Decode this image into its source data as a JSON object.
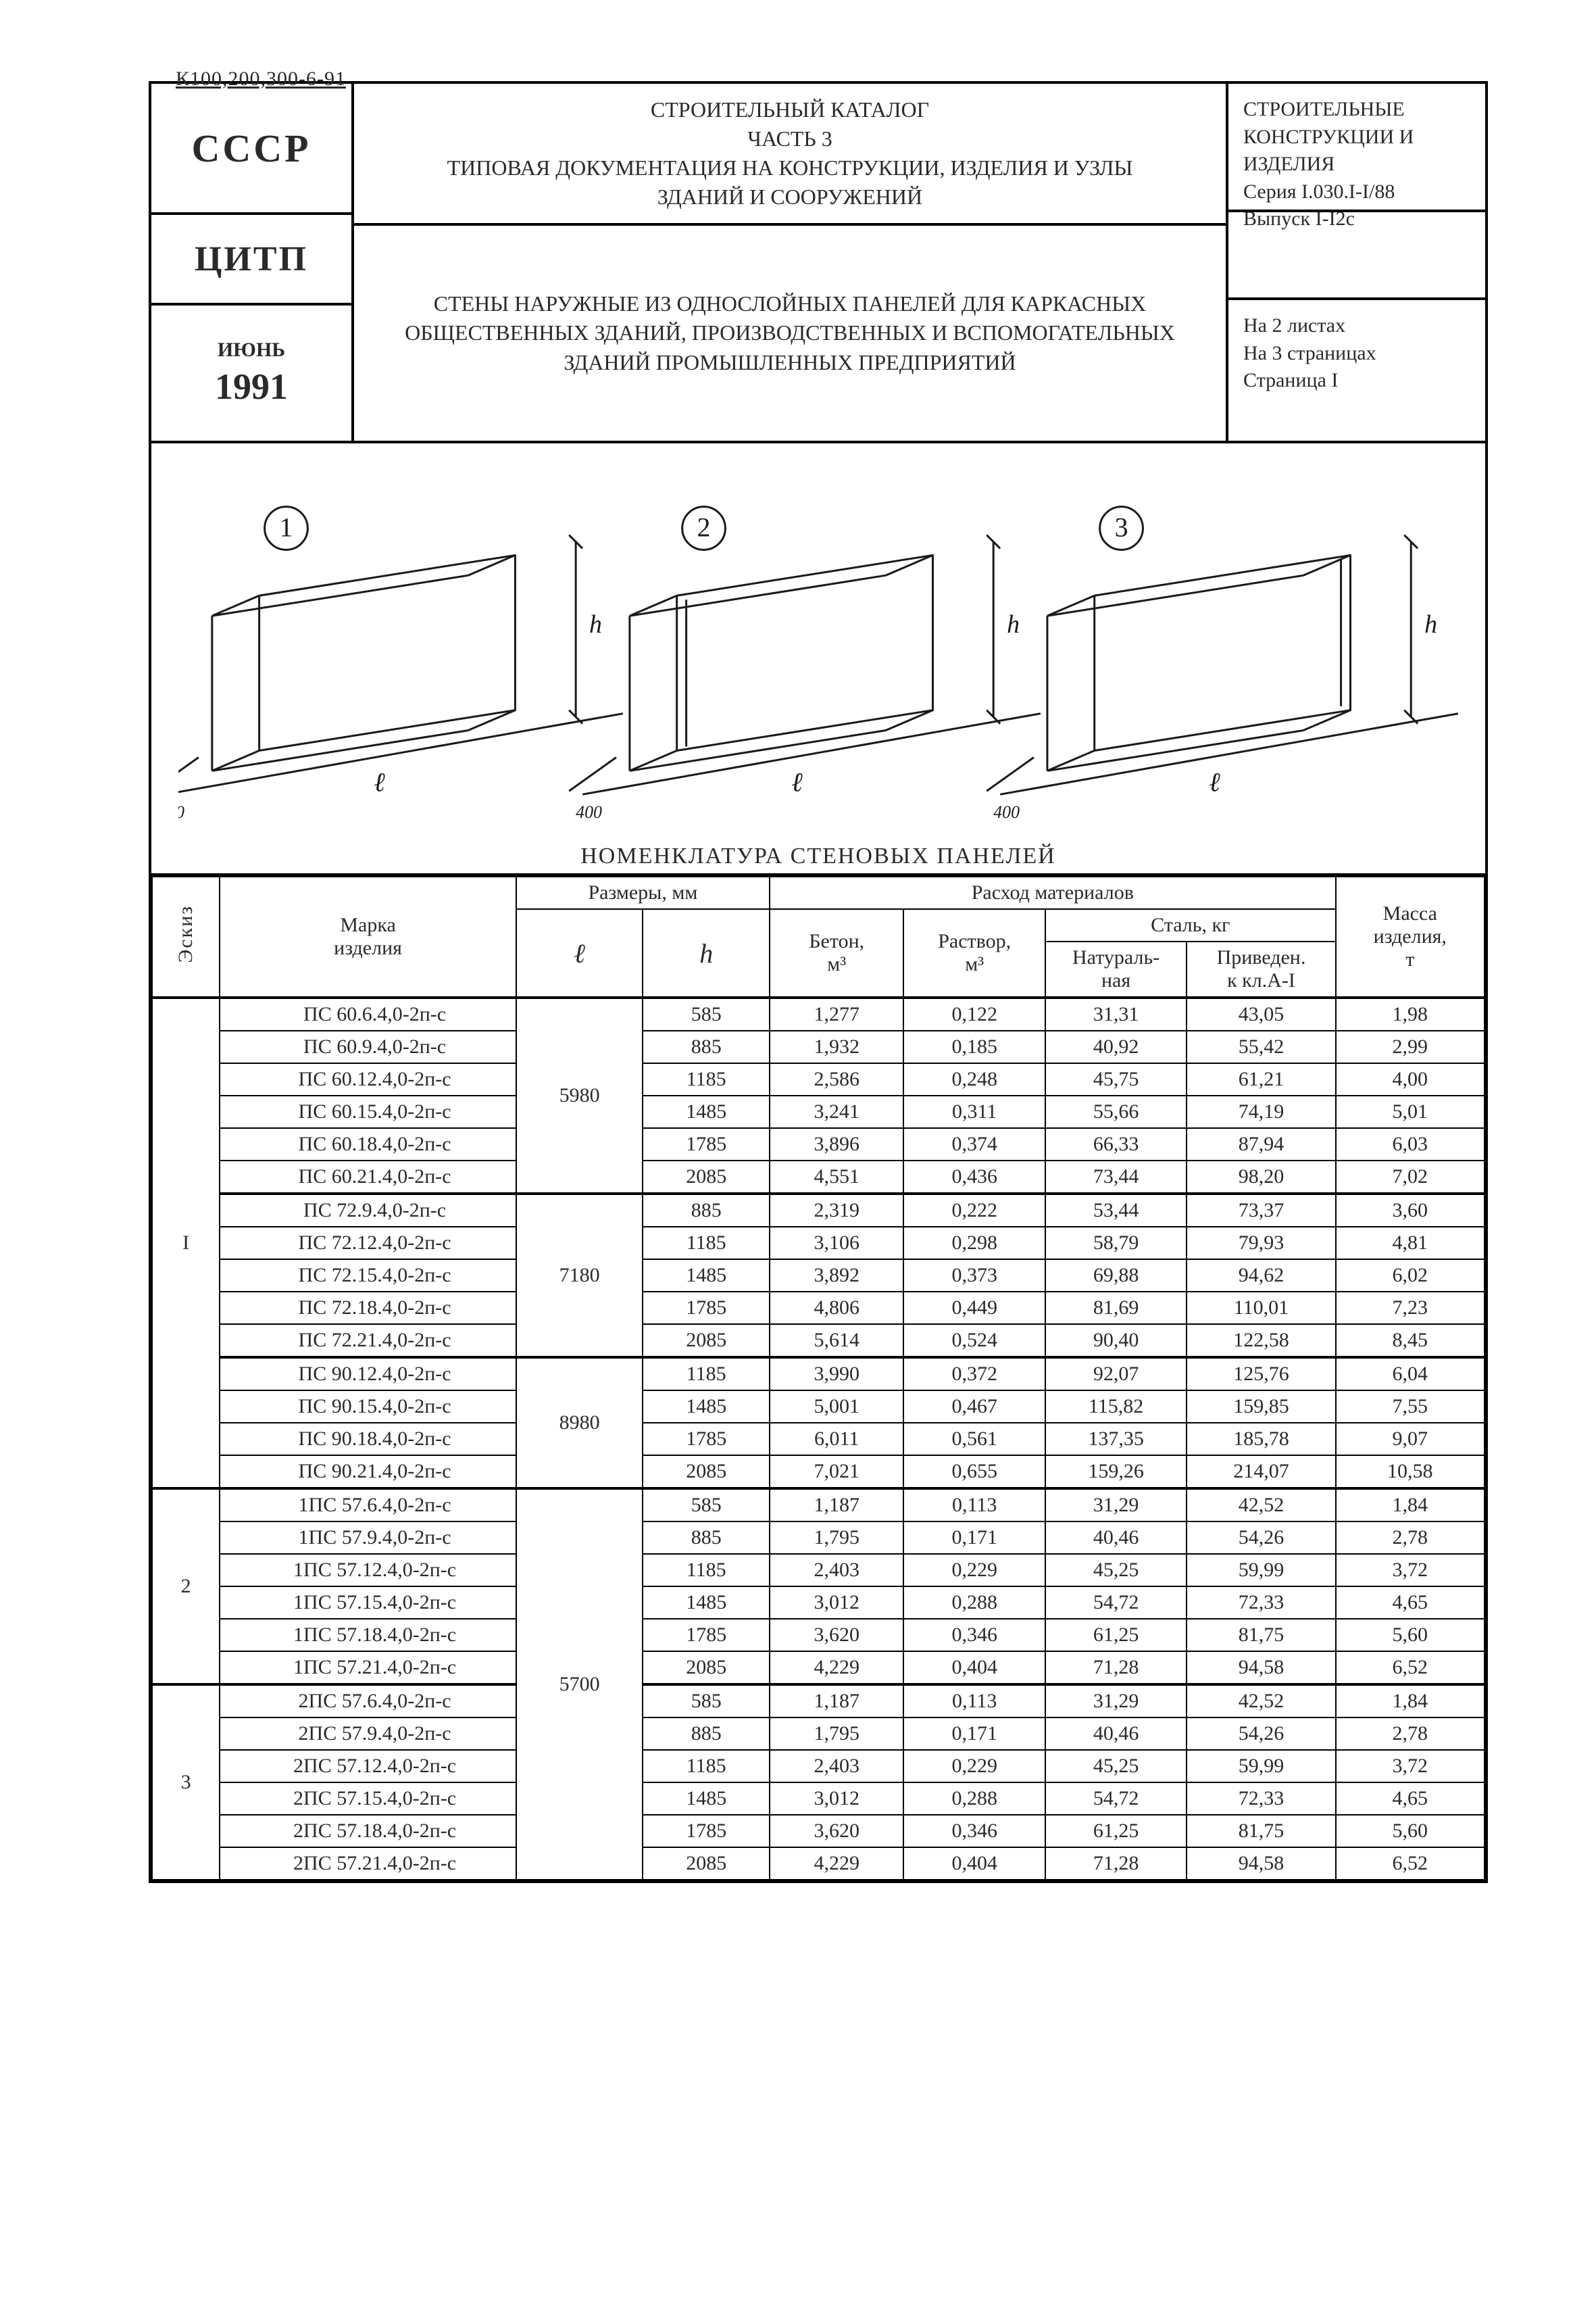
{
  "doc_code": "К100,200,300-6-91",
  "header": {
    "left": {
      "country": "СССР",
      "org": "ЦИТП",
      "month": "ИЮНЬ",
      "year": "1991"
    },
    "mid_top": "СТРОИТЕЛЬНЫЙ КАТАЛОГ\nЧАСТЬ 3\nТИПОВАЯ ДОКУМЕНТАЦИЯ НА КОНСТРУКЦИИ, ИЗДЕЛИЯ И УЗЛЫ\nЗДАНИЙ И СООРУЖЕНИЙ",
    "mid_bot": "СТЕНЫ НАРУЖНЫЕ ИЗ ОДНОСЛОЙНЫХ ПАНЕЛЕЙ ДЛЯ КАРКАСНЫХ\nОБЩЕСТВЕННЫХ ЗДАНИЙ, ПРОИЗВОДСТВЕННЫХ И ВСПОМОГАТЕЛЬНЫХ\nЗДАНИЙ ПРОМЫШЛЕННЫХ ПРЕДПРИЯТИЙ",
    "right_top": "СТРОИТЕЛЬНЫЕ\nКОНСТРУКЦИИ И\nИЗДЕЛИЯ\nСерия I.030.I-I/88\nВыпуск I-I2с",
    "right_bot": "На 2 листах\nНа 3 страницах\nСтраница I"
  },
  "diagram": {
    "caption": "НОМЕНКЛАТУРА СТЕНОВЫХ ПАНЕЛЕЙ",
    "labels": [
      "1",
      "2",
      "3"
    ],
    "dim_h": "h",
    "dim_l": "ℓ",
    "dim_w": "400",
    "stroke": "#1a1a1a",
    "stroke_w": 3
  },
  "columns": {
    "eskiz": "Эскиз",
    "marka": "Марка\nизделия",
    "razmery": "Размеры, мм",
    "l": "ℓ",
    "h": "h",
    "rashod": "Расход материалов",
    "beton": "Бетон,\nм³",
    "rastvor": "Раствор,\nм³",
    "stal": "Сталь, кг",
    "nat": "Натураль-\nная",
    "priv": "Приведен.\nк кл.А-I",
    "massa": "Масса\nизделия,\nт"
  },
  "groups": [
    {
      "eskiz": "I",
      "blocks": [
        {
          "l": "5980",
          "rows": [
            [
              "ПС 60.6.4,0-2п-с",
              "585",
              "1,277",
              "0,122",
              "31,31",
              "43,05",
              "1,98"
            ],
            [
              "ПС 60.9.4,0-2п-с",
              "885",
              "1,932",
              "0,185",
              "40,92",
              "55,42",
              "2,99"
            ],
            [
              "ПС 60.12.4,0-2п-с",
              "1185",
              "2,586",
              "0,248",
              "45,75",
              "61,21",
              "4,00"
            ],
            [
              "ПС 60.15.4,0-2п-с",
              "1485",
              "3,241",
              "0,311",
              "55,66",
              "74,19",
              "5,01"
            ],
            [
              "ПС 60.18.4,0-2п-с",
              "1785",
              "3,896",
              "0,374",
              "66,33",
              "87,94",
              "6,03"
            ],
            [
              "ПС 60.21.4,0-2п-с",
              "2085",
              "4,551",
              "0,436",
              "73,44",
              "98,20",
              "7,02"
            ]
          ]
        },
        {
          "l": "7180",
          "rows": [
            [
              "ПС 72.9.4,0-2п-с",
              "885",
              "2,319",
              "0,222",
              "53,44",
              "73,37",
              "3,60"
            ],
            [
              "ПС 72.12.4,0-2п-с",
              "1185",
              "3,106",
              "0,298",
              "58,79",
              "79,93",
              "4,81"
            ],
            [
              "ПС 72.15.4,0-2п-с",
              "1485",
              "3,892",
              "0,373",
              "69,88",
              "94,62",
              "6,02"
            ],
            [
              "ПС 72.18.4,0-2п-с",
              "1785",
              "4,806",
              "0,449",
              "81,69",
              "110,01",
              "7,23"
            ],
            [
              "ПС 72.21.4,0-2п-с",
              "2085",
              "5,614",
              "0,524",
              "90,40",
              "122,58",
              "8,45"
            ]
          ]
        },
        {
          "l": "8980",
          "rows": [
            [
              "ПС 90.12.4,0-2п-с",
              "1185",
              "3,990",
              "0,372",
              "92,07",
              "125,76",
              "6,04"
            ],
            [
              "ПС 90.15.4,0-2п-с",
              "1485",
              "5,001",
              "0,467",
              "115,82",
              "159,85",
              "7,55"
            ],
            [
              "ПС 90.18.4,0-2п-с",
              "1785",
              "6,011",
              "0,561",
              "137,35",
              "185,78",
              "9,07"
            ],
            [
              "ПС 90.21.4,0-2п-с",
              "2085",
              "7,021",
              "0,655",
              "159,26",
              "214,07",
              "10,58"
            ]
          ]
        }
      ]
    },
    {
      "eskiz": "2",
      "l_shared": "5700",
      "blocks": [
        {
          "rows": [
            [
              "1ПС 57.6.4,0-2п-с",
              "585",
              "1,187",
              "0,113",
              "31,29",
              "42,52",
              "1,84"
            ],
            [
              "1ПС 57.9.4,0-2п-с",
              "885",
              "1,795",
              "0,171",
              "40,46",
              "54,26",
              "2,78"
            ],
            [
              "1ПС 57.12.4,0-2п-с",
              "1185",
              "2,403",
              "0,229",
              "45,25",
              "59,99",
              "3,72"
            ],
            [
              "1ПС 57.15.4,0-2п-с",
              "1485",
              "3,012",
              "0,288",
              "54,72",
              "72,33",
              "4,65"
            ],
            [
              "1ПС 57.18.4,0-2п-с",
              "1785",
              "3,620",
              "0,346",
              "61,25",
              "81,75",
              "5,60"
            ],
            [
              "1ПС 57.21.4,0-2п-с",
              "2085",
              "4,229",
              "0,404",
              "71,28",
              "94,58",
              "6,52"
            ]
          ]
        }
      ]
    },
    {
      "eskiz": "3",
      "blocks": [
        {
          "rows": [
            [
              "2ПС 57.6.4,0-2п-с",
              "585",
              "1,187",
              "0,113",
              "31,29",
              "42,52",
              "1,84"
            ],
            [
              "2ПС 57.9.4,0-2п-с",
              "885",
              "1,795",
              "0,171",
              "40,46",
              "54,26",
              "2,78"
            ],
            [
              "2ПС 57.12.4,0-2п-с",
              "1185",
              "2,403",
              "0,229",
              "45,25",
              "59,99",
              "3,72"
            ],
            [
              "2ПС 57.15.4,0-2п-с",
              "1485",
              "3,012",
              "0,288",
              "54,72",
              "72,33",
              "4,65"
            ],
            [
              "2ПС 57.18.4,0-2п-с",
              "1785",
              "3,620",
              "0,346",
              "61,25",
              "81,75",
              "5,60"
            ],
            [
              "2ПС 57.21.4,0-2п-с",
              "2085",
              "4,229",
              "0,404",
              "71,28",
              "94,58",
              "6,52"
            ]
          ]
        }
      ]
    }
  ],
  "style": {
    "page_bg": "#ffffff",
    "ink": "#1a1a1a",
    "border_w": 4,
    "cell_border_w": 2,
    "font_body_pt": 30,
    "font_title_pt": 34
  }
}
